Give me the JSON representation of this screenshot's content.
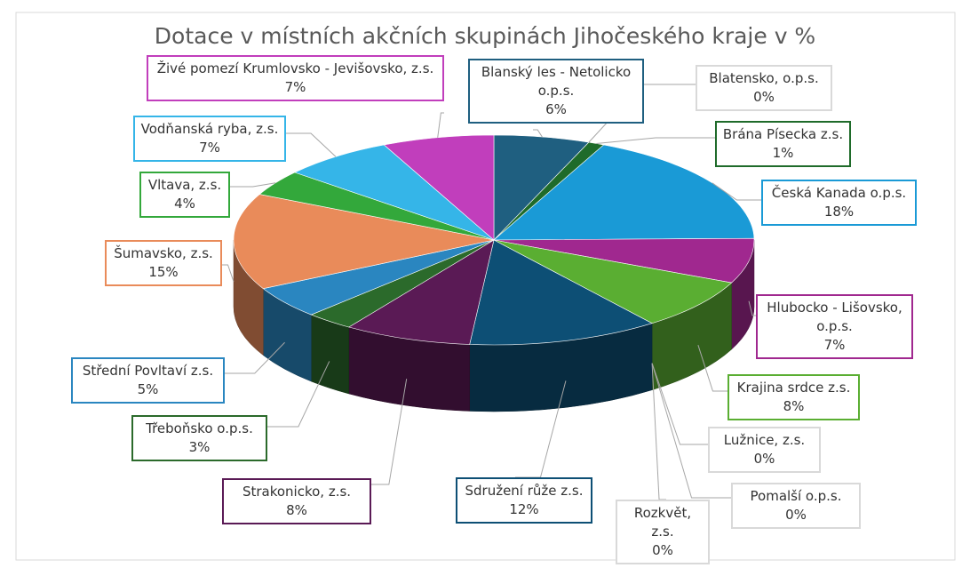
{
  "chart_data": {
    "type": "pie3d",
    "title": "Dotace v místních akčních skupinách Jihočeského kraje v %",
    "categories": [
      "Blanský les - Netolicko o.p.s.",
      "Blatensko, o.p.s.",
      "Brána Písecka z.s.",
      "Česká Kanada o.p.s.",
      "Hlubocko - Lišovsko, o.p.s.",
      "Krajina srdce z.s.",
      "Lužnice, z.s.",
      "Pomalší o.p.s.",
      "Rozkvět, z.s.",
      "Sdružení růže z.s.",
      "Strakonicko, z.s.",
      "Třeboňsko o.p.s.",
      "Střední Povltaví z.s.",
      "Šumavsko, z.s.",
      "Vltava, z.s.",
      "Vodňanská ryba, z.s.",
      "Živé pomezí Krumlovsko - Jevišovsko, z.s."
    ],
    "values": [
      6,
      0,
      1,
      18,
      7,
      8,
      0,
      0,
      0,
      12,
      8,
      3,
      5,
      15,
      4,
      7,
      7
    ],
    "value_labels": [
      "6%",
      "0%",
      "1%",
      "18%",
      "7%",
      "8%",
      "0%",
      "0%",
      "0%",
      "12%",
      "8%",
      "3%",
      "5%",
      "15%",
      "4%",
      "7%",
      "7%"
    ],
    "colors": [
      "#1f5f80",
      "#d9d9d9",
      "#1f6b2a",
      "#1a9ad6",
      "#a0288f",
      "#5aae32",
      "#d9d9d9",
      "#d9d9d9",
      "#d9d9d9",
      "#0d4f75",
      "#5a1a55",
      "#2b6a2b",
      "#2a86c0",
      "#e98b5a",
      "#33a83b",
      "#35b5e8",
      "#c13ebc"
    ]
  }
}
